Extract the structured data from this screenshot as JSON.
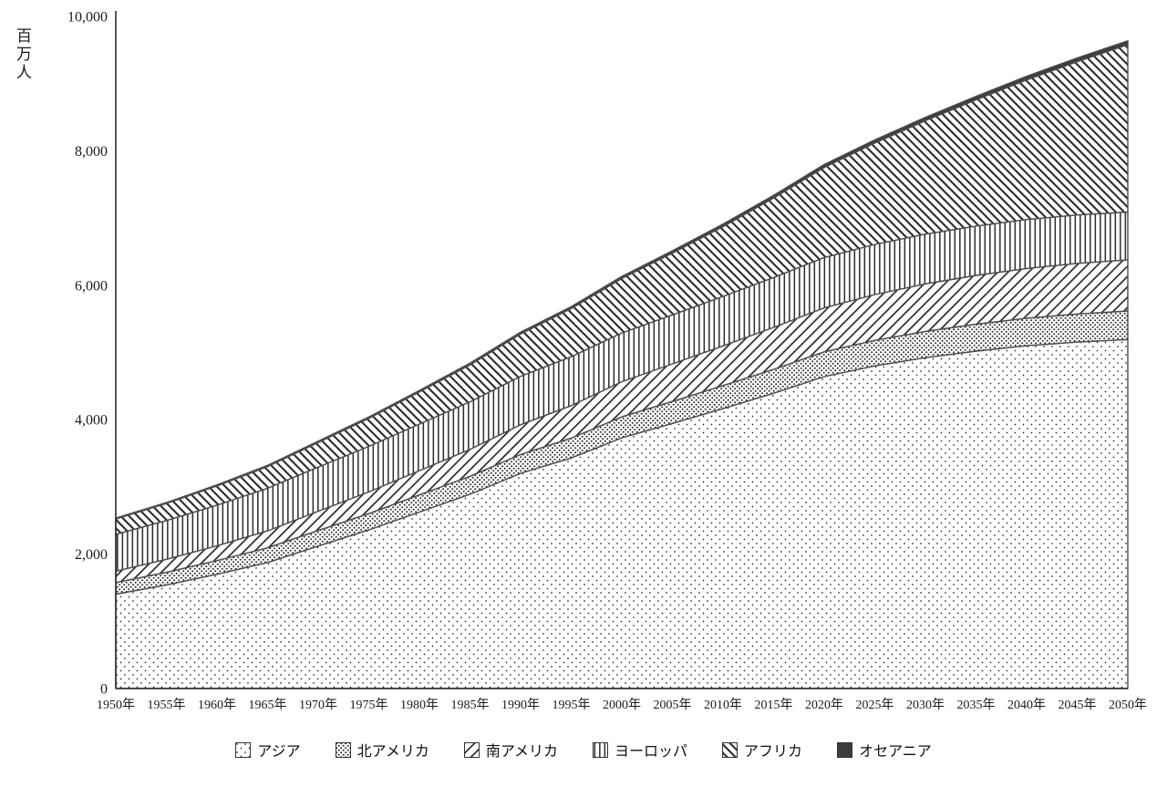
{
  "unit_label": "百万人",
  "chart_data": {
    "type": "area",
    "stacked": true,
    "title": "",
    "ylabel": "百万人",
    "ylim": [
      0,
      10000
    ],
    "yticks": [
      0,
      2000,
      4000,
      6000,
      8000,
      10000
    ],
    "ytick_labels": [
      "0",
      "2,000",
      "4,000",
      "6,000",
      "8,000",
      "10,000"
    ],
    "x_labels": [
      "1950年",
      "1955年",
      "1960年",
      "1965年",
      "1970年",
      "1975年",
      "1980年",
      "1985年",
      "1990年",
      "1995年",
      "2000年",
      "2005年",
      "2010年",
      "2015年",
      "2020年",
      "2025年",
      "2030年",
      "2035年",
      "2040年",
      "2045年",
      "2050年"
    ],
    "years": [
      1950,
      1955,
      1960,
      1965,
      1970,
      1975,
      1980,
      1985,
      1990,
      1995,
      2000,
      2005,
      2010,
      2015,
      2020,
      2025,
      2030,
      2035,
      2040,
      2045,
      2050
    ],
    "legend_position": "bottom",
    "grid": false,
    "series": [
      {
        "name": "アジア",
        "pattern": "dots-sparse",
        "values": [
          1404,
          1542,
          1700,
          1875,
          2120,
          2360,
          2626,
          2890,
          3202,
          3430,
          3730,
          3945,
          4164,
          4393,
          4641,
          4800,
          4923,
          5020,
          5100,
          5155,
          5192
        ]
      },
      {
        "name": "北アメリカ",
        "pattern": "dots-dense",
        "values": [
          173,
          187,
          204,
          219,
          231,
          242,
          254,
          267,
          280,
          296,
          312,
          327,
          343,
          356,
          369,
          380,
          391,
          401,
          410,
          418,
          425
        ]
      },
      {
        "name": "南アメリカ",
        "pattern": "diagonal-up",
        "values": [
          169,
          193,
          220,
          252,
          287,
          323,
          361,
          401,
          443,
          483,
          522,
          558,
          591,
          624,
          654,
          682,
          706,
          725,
          740,
          753,
          762
        ]
      },
      {
        "name": "ヨーロッパ",
        "pattern": "vertical-lines",
        "values": [
          549,
          577,
          605,
          634,
          657,
          677,
          694,
          708,
          721,
          727,
          726,
          729,
          736,
          743,
          748,
          746,
          741,
          735,
          728,
          720,
          711
        ]
      },
      {
        "name": "アフリカ",
        "pattern": "diagonal-down",
        "values": [
          228,
          254,
          285,
          322,
          366,
          418,
          478,
          550,
          630,
          717,
          811,
          920,
          1039,
          1182,
          1341,
          1509,
          1688,
          1878,
          2077,
          2281,
          2489
        ]
      },
      {
        "name": "オセアニア",
        "pattern": "solid-dark",
        "values": [
          13,
          14,
          16,
          18,
          20,
          21,
          23,
          25,
          27,
          29,
          31,
          34,
          37,
          40,
          43,
          46,
          49,
          51,
          54,
          56,
          58
        ]
      }
    ],
    "colors": {
      "stroke": "#4c4c4c",
      "axis": "#2b2b2b",
      "pattern_ink": "#2b2b2b",
      "solid_dark": "#3d3d3d",
      "background": "#ffffff"
    }
  }
}
